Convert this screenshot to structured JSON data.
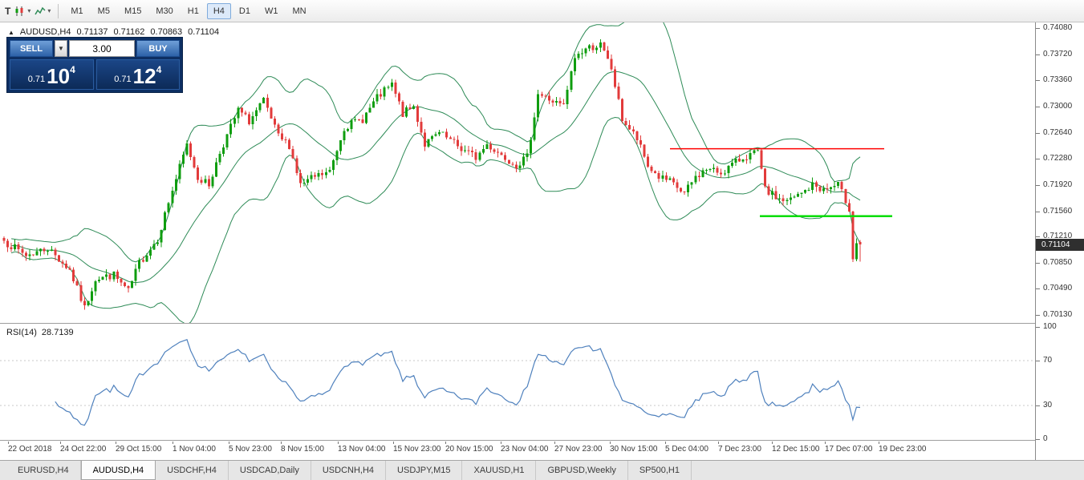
{
  "toolbar": {
    "timeframes": [
      {
        "label": "M1",
        "active": false
      },
      {
        "label": "M5",
        "active": false
      },
      {
        "label": "M15",
        "active": false
      },
      {
        "label": "M30",
        "active": false
      },
      {
        "label": "H1",
        "active": false
      },
      {
        "label": "H4",
        "active": true
      },
      {
        "label": "D1",
        "active": false
      },
      {
        "label": "W1",
        "active": false
      },
      {
        "label": "MN",
        "active": false
      }
    ]
  },
  "quote_bar": {
    "symbol": "AUDUSD,H4",
    "open": "0.71137",
    "high": "0.71162",
    "low": "0.70863",
    "close": "0.71104"
  },
  "trade_panel": {
    "sell_label": "SELL",
    "buy_label": "BUY",
    "volume": "3.00",
    "sell_price": {
      "big_figure": "0.71",
      "pips": "10",
      "pip_fraction": "4"
    },
    "buy_price": {
      "big_figure": "0.71",
      "pips": "12",
      "pip_fraction": "4"
    }
  },
  "price_scale": {
    "labels": [
      "0.74080",
      "0.73720",
      "0.73360",
      "0.73000",
      "0.72640",
      "0.72280",
      "0.71920",
      "0.71560",
      "0.71210",
      "0.70850",
      "0.70490",
      "0.70130"
    ],
    "current_price": "0.71104"
  },
  "rsi_panel": {
    "name": "RSI(14)",
    "value": "28.7139",
    "scale_labels": [
      "100",
      "70",
      "30",
      "0"
    ]
  },
  "time_axis": {
    "labels": [
      {
        "text": "22 Oct 2018",
        "x": 0.008
      },
      {
        "text": "24 Oct 22:00",
        "x": 0.058
      },
      {
        "text": "29 Oct 15:00",
        "x": 0.112
      },
      {
        "text": "1 Nov 04:00",
        "x": 0.167
      },
      {
        "text": "5 Nov 23:00",
        "x": 0.221
      },
      {
        "text": "8 Nov 15:00",
        "x": 0.271
      },
      {
        "text": "13 Nov 04:00",
        "x": 0.326
      },
      {
        "text": "15 Nov 23:00",
        "x": 0.38
      },
      {
        "text": "20 Nov 15:00",
        "x": 0.43
      },
      {
        "text": "23 Nov 04:00",
        "x": 0.484
      },
      {
        "text": "27 Nov 23:00",
        "x": 0.536
      },
      {
        "text": "30 Nov 15:00",
        "x": 0.589
      },
      {
        "text": "5 Dec 04:00",
        "x": 0.643
      },
      {
        "text": "7 Dec 23:00",
        "x": 0.694
      },
      {
        "text": "12 Dec 15:00",
        "x": 0.746
      },
      {
        "text": "17 Dec 07:00",
        "x": 0.797
      },
      {
        "text": "19 Dec 23:00",
        "x": 0.849
      }
    ]
  },
  "tabs": [
    {
      "label": "EURUSD,H4",
      "active": false
    },
    {
      "label": "AUDUSD,H4",
      "active": true
    },
    {
      "label": "USDCHF,H4",
      "active": false
    },
    {
      "label": "USDCAD,Daily",
      "active": false
    },
    {
      "label": "USDCNH,H4",
      "active": false
    },
    {
      "label": "USDJPY,M15",
      "active": false
    },
    {
      "label": "XAUUSD,H1",
      "active": false
    },
    {
      "label": "GBPUSD,Weekly",
      "active": false
    },
    {
      "label": "SP500,H1",
      "active": false
    }
  ],
  "chart_data": {
    "type": "candlestick",
    "symbol": "AUDUSD",
    "timeframe": "H4",
    "candle_count": 235,
    "seed": 7,
    "price_range": {
      "top": 0.7416,
      "bottom": 0.7002
    },
    "close_path_anchors": [
      [
        0,
        0.7115
      ],
      [
        6,
        0.7095
      ],
      [
        12,
        0.7105
      ],
      [
        18,
        0.7075
      ],
      [
        22,
        0.7022
      ],
      [
        25,
        0.7063
      ],
      [
        30,
        0.7068
      ],
      [
        34,
        0.7045
      ],
      [
        37,
        0.7085
      ],
      [
        42,
        0.7118
      ],
      [
        46,
        0.7185
      ],
      [
        50,
        0.7247
      ],
      [
        53,
        0.7203
      ],
      [
        56,
        0.7192
      ],
      [
        59,
        0.7237
      ],
      [
        64,
        0.7295
      ],
      [
        67,
        0.728
      ],
      [
        71,
        0.7307
      ],
      [
        75,
        0.7258
      ],
      [
        78,
        0.7247
      ],
      [
        81,
        0.7192
      ],
      [
        85,
        0.7203
      ],
      [
        89,
        0.721
      ],
      [
        93,
        0.7272
      ],
      [
        98,
        0.7283
      ],
      [
        102,
        0.7312
      ],
      [
        106,
        0.733
      ],
      [
        109,
        0.729
      ],
      [
        112,
        0.73
      ],
      [
        115,
        0.7248
      ],
      [
        119,
        0.7263
      ],
      [
        122,
        0.7253
      ],
      [
        125,
        0.7242
      ],
      [
        129,
        0.723
      ],
      [
        132,
        0.7248
      ],
      [
        135,
        0.7237
      ],
      [
        140,
        0.722
      ],
      [
        143,
        0.723
      ],
      [
        146,
        0.7318
      ],
      [
        150,
        0.7307
      ],
      [
        153,
        0.73
      ],
      [
        156,
        0.7368
      ],
      [
        159,
        0.738
      ],
      [
        163,
        0.7385
      ],
      [
        166,
        0.7352
      ],
      [
        169,
        0.7283
      ],
      [
        173,
        0.7255
      ],
      [
        176,
        0.7218
      ],
      [
        179,
        0.7203
      ],
      [
        182,
        0.7196
      ],
      [
        186,
        0.718
      ],
      [
        189,
        0.7203
      ],
      [
        192,
        0.7214
      ],
      [
        196,
        0.7209
      ],
      [
        199,
        0.722
      ],
      [
        202,
        0.723
      ],
      [
        206,
        0.7237
      ],
      [
        208,
        0.7185
      ],
      [
        211,
        0.7175
      ],
      [
        214,
        0.7169
      ],
      [
        218,
        0.718
      ],
      [
        221,
        0.7192
      ],
      [
        224,
        0.7185
      ],
      [
        228,
        0.7192
      ],
      [
        231,
        0.716
      ],
      [
        232,
        0.709
      ],
      [
        233,
        0.7112
      ],
      [
        234,
        0.71104
      ]
    ],
    "last_candle": {
      "open": 0.71137,
      "high": 0.71162,
      "low": 0.70863,
      "close": 0.71104
    },
    "indicators": {
      "bollinger": {
        "period": 20,
        "deviation": 2,
        "color": "#2e8b57"
      },
      "rsi": {
        "period": 14,
        "value": 28.7139,
        "color": "#4f81bd",
        "range": [
          0,
          100
        ],
        "levels": [
          70,
          30
        ]
      }
    },
    "overlays": [
      {
        "type": "hline",
        "price": 0.7242,
        "x_from": 0.647,
        "x_to": 0.854,
        "color": "#ff0000",
        "width": 1.5
      },
      {
        "type": "hline",
        "price": 0.7149,
        "x_from": 0.734,
        "x_to": 0.862,
        "color": "#00dd00",
        "width": 2.5
      }
    ],
    "colors": {
      "up": "#0f9d0f",
      "down": "#e23b3b",
      "bands": "#2e8b57"
    }
  }
}
